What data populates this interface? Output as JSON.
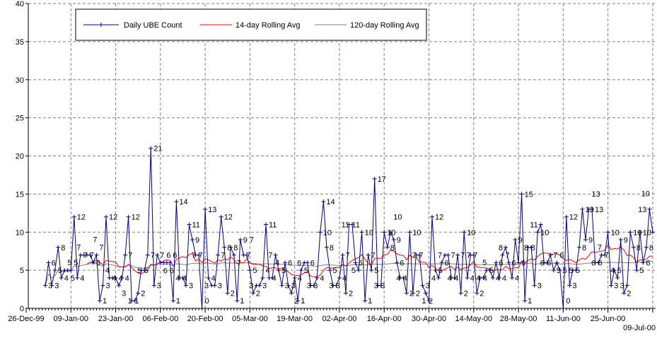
{
  "chart_data": {
    "type": "line",
    "title": "",
    "xlabel": "",
    "ylabel": "",
    "ylim": [
      0,
      40
    ],
    "yticks": [
      0,
      5,
      10,
      15,
      20,
      25,
      30,
      35,
      40
    ],
    "xlim": [
      "1999-12-26",
      "2000-07-10"
    ],
    "xtick_dates": [
      "1999-12-26",
      "2000-01-09",
      "2000-01-23",
      "2000-02-06",
      "2000-02-20",
      "2000-03-05",
      "2000-03-19",
      "2000-04-02",
      "2000-04-16",
      "2000-04-30",
      "2000-05-14",
      "2000-05-28",
      "2000-06-11",
      "2000-06-25",
      "2000-07-09"
    ],
    "xtick_labels": [
      "26-Dec-99",
      "09-Jan-00",
      "23-Jan-00",
      "06-Feb-00",
      "20-Feb-00",
      "05-Mar-00",
      "19-Mar-00",
      "02-Apr-00",
      "16-Apr-00",
      "30-Apr-00",
      "14-May-00",
      "28-May-00",
      "11-Jun-00",
      "25-Jun-00",
      "09-Jul-00"
    ],
    "grid": true,
    "legend_position": "top-left",
    "data_labels": true,
    "x": [
      "2000-01-01",
      "2000-01-02",
      "2000-01-03",
      "2000-01-04",
      "2000-01-05",
      "2000-01-06",
      "2000-01-07",
      "2000-01-08",
      "2000-01-09",
      "2000-01-10",
      "2000-01-11",
      "2000-01-12",
      "2000-01-13",
      "2000-01-14",
      "2000-01-15",
      "2000-01-16",
      "2000-01-17",
      "2000-01-18",
      "2000-01-19",
      "2000-01-20",
      "2000-01-21",
      "2000-01-22",
      "2000-01-23",
      "2000-01-24",
      "2000-01-25",
      "2000-01-26",
      "2000-01-27",
      "2000-01-28",
      "2000-01-29",
      "2000-01-30",
      "2000-01-31",
      "2000-02-01",
      "2000-02-02",
      "2000-02-03",
      "2000-02-04",
      "2000-02-05",
      "2000-02-06",
      "2000-02-07",
      "2000-02-08",
      "2000-02-09",
      "2000-02-10",
      "2000-02-11",
      "2000-02-12",
      "2000-02-13",
      "2000-02-14",
      "2000-02-15",
      "2000-02-16",
      "2000-02-17",
      "2000-02-18",
      "2000-02-19",
      "2000-02-20",
      "2000-02-21",
      "2000-02-22",
      "2000-02-23",
      "2000-02-24",
      "2000-02-25",
      "2000-02-26",
      "2000-02-27",
      "2000-02-28",
      "2000-02-29",
      "2000-03-01",
      "2000-03-02",
      "2000-03-03",
      "2000-03-04",
      "2000-03-05",
      "2000-03-06",
      "2000-03-07",
      "2000-03-08",
      "2000-03-09",
      "2000-03-10",
      "2000-03-11",
      "2000-03-12",
      "2000-03-13",
      "2000-03-14",
      "2000-03-15",
      "2000-03-16",
      "2000-03-17",
      "2000-03-18",
      "2000-03-19",
      "2000-03-20",
      "2000-03-21",
      "2000-03-22",
      "2000-03-23",
      "2000-03-24",
      "2000-03-25",
      "2000-03-26",
      "2000-03-27",
      "2000-03-28",
      "2000-03-29",
      "2000-03-30",
      "2000-03-31",
      "2000-04-01",
      "2000-04-02",
      "2000-04-03",
      "2000-04-04",
      "2000-04-05",
      "2000-04-06",
      "2000-04-07",
      "2000-04-08",
      "2000-04-09",
      "2000-04-10",
      "2000-04-11",
      "2000-04-12",
      "2000-04-13",
      "2000-04-14",
      "2000-04-15",
      "2000-04-16",
      "2000-04-17",
      "2000-04-18",
      "2000-04-19",
      "2000-04-20",
      "2000-04-21",
      "2000-04-22",
      "2000-04-23",
      "2000-04-24",
      "2000-04-25",
      "2000-04-26",
      "2000-04-27",
      "2000-04-28",
      "2000-04-29",
      "2000-04-30",
      "2000-05-01",
      "2000-05-02",
      "2000-05-03",
      "2000-05-04",
      "2000-05-05",
      "2000-05-06",
      "2000-05-07",
      "2000-05-08",
      "2000-05-09",
      "2000-05-10",
      "2000-05-11",
      "2000-05-12",
      "2000-05-13",
      "2000-05-14",
      "2000-05-15",
      "2000-05-16",
      "2000-05-17",
      "2000-05-18",
      "2000-05-19",
      "2000-05-20",
      "2000-05-21",
      "2000-05-22",
      "2000-05-23",
      "2000-05-24",
      "2000-05-25",
      "2000-05-26",
      "2000-05-27",
      "2000-05-28",
      "2000-05-29",
      "2000-05-30",
      "2000-05-31",
      "2000-06-01",
      "2000-06-02",
      "2000-06-03",
      "2000-06-04",
      "2000-06-05",
      "2000-06-06",
      "2000-06-07",
      "2000-06-08",
      "2000-06-09",
      "2000-06-10",
      "2000-06-11",
      "2000-06-12",
      "2000-06-13",
      "2000-06-14",
      "2000-06-15",
      "2000-06-16",
      "2000-06-17",
      "2000-06-18",
      "2000-06-19",
      "2000-06-20",
      "2000-06-21",
      "2000-06-22",
      "2000-06-23",
      "2000-06-24",
      "2000-06-25",
      "2000-06-26",
      "2000-06-27",
      "2000-06-28",
      "2000-06-29",
      "2000-06-30",
      "2000-07-01",
      "2000-07-02",
      "2000-07-03",
      "2000-07-04",
      "2000-07-05",
      "2000-07-06",
      "2000-07-07",
      "2000-07-08",
      "2000-07-09"
    ],
    "series": [
      {
        "name": "Daily UBE Count",
        "color": "#000080",
        "marker": "plus",
        "values": [
          3,
          6,
          3,
          5,
          8,
          4,
          5,
          5,
          5,
          12,
          4,
          7,
          7,
          7,
          7,
          6,
          7,
          1,
          3,
          12,
          4,
          4,
          4,
          3,
          4,
          7,
          12,
          1,
          1,
          2,
          5,
          5,
          7,
          21,
          3,
          7,
          6,
          6,
          6,
          6,
          1,
          14,
          4,
          4,
          3,
          11,
          9,
          7,
          7,
          0,
          13,
          4,
          3,
          3,
          7,
          12,
          8,
          2,
          8,
          7,
          1,
          9,
          7,
          7,
          5,
          2,
          3,
          3,
          4,
          11,
          4,
          4,
          7,
          5,
          3,
          6,
          3,
          2,
          4,
          1,
          5,
          6,
          6,
          3,
          3,
          4,
          10,
          14,
          8,
          5,
          3,
          3,
          4,
          7,
          2,
          11,
          11,
          6,
          5,
          10,
          1,
          7,
          5,
          17,
          3,
          3,
          10,
          8,
          10,
          9,
          6,
          4,
          4,
          2,
          10,
          2,
          7,
          7,
          3,
          2,
          1,
          12,
          5,
          4,
          6,
          7,
          7,
          4,
          4,
          7,
          2,
          10,
          4,
          7,
          7,
          2,
          4,
          4,
          5,
          5,
          4,
          6,
          4,
          7,
          8,
          6,
          4,
          9,
          6,
          15,
          1,
          8,
          8,
          3,
          10,
          11,
          6,
          6,
          7,
          5,
          6,
          5,
          0,
          12,
          3,
          5,
          5,
          8,
          13,
          9,
          13,
          13,
          6,
          6,
          7,
          7,
          10,
          3,
          5,
          4,
          9,
          2,
          3,
          10,
          8,
          5,
          10,
          6,
          8,
          13,
          10
        ]
      },
      {
        "name": "14-day Rolling Avg",
        "color": "#ff0000",
        "window_days": 14
      },
      {
        "name": "120-day Rolling Avg",
        "color": "#808080",
        "window_days": 120
      }
    ]
  }
}
